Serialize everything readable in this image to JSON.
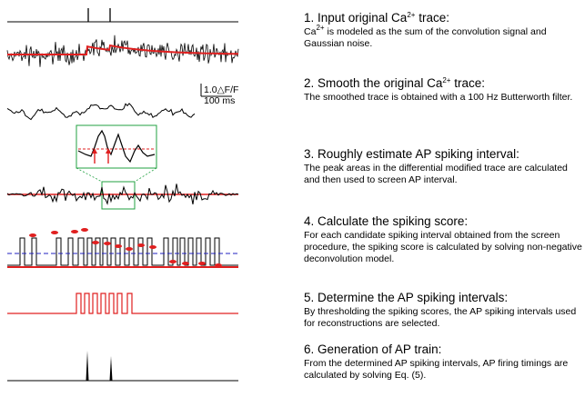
{
  "steps": [
    {
      "title_pre": "1. Input original Ca",
      "title_sup": "2+",
      "title_post": " trace:",
      "desc_pre": "Ca",
      "desc_sup": "2+",
      "desc_post": " is modeled as the sum of  the convolution signal and Gaussian noise."
    },
    {
      "title_pre": "2. Smooth the original Ca",
      "title_sup": "2+",
      "title_post": " trace:",
      "desc_pre": "The smoothed trace is obtained with a 100 Hz Butterworth filter.",
      "desc_sup": "",
      "desc_post": ""
    },
    {
      "title_pre": "3. Roughly estimate AP spiking interval:",
      "title_sup": "",
      "title_post": "",
      "desc_pre": "The peak areas in the differential modified trace are calculated and then used to screen AP  interval.",
      "desc_sup": "",
      "desc_post": ""
    },
    {
      "title_pre": "4. Calculate the spiking score:",
      "title_sup": "",
      "title_post": "",
      "desc_pre": "For  each candidate spiking interval obtained  from the screen procedure, the  spiking score is calculated by solving non-negative deconvolution model.",
      "desc_sup": "",
      "desc_post": ""
    },
    {
      "title_pre": "5. Determine the AP spiking intervals:",
      "title_sup": "",
      "title_post": "",
      "desc_pre": "By thresholding the spiking scores,  the AP spiking intervals used for reconstructions  are selected.",
      "desc_sup": "",
      "desc_post": ""
    },
    {
      "title_pre": "6. Generation of AP train:",
      "title_sup": "",
      "title_post": "",
      "desc_pre": "From the determined AP spiking intervals, AP firing timings are calculated by solving Eq. (5).",
      "desc_sup": "",
      "desc_post": ""
    }
  ],
  "scalebar": {
    "vertical_label": "1.0△F/F",
    "horizontal_label": "100 ms"
  },
  "colors": {
    "trace": "#000000",
    "fit": "#e02020",
    "threshold": "#2020c0",
    "inset_border": "#20a040"
  }
}
